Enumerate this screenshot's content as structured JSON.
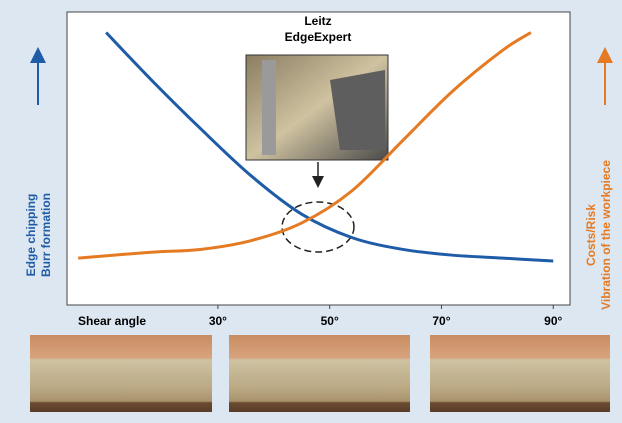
{
  "chart_data": {
    "type": "line",
    "annotation": [
      "Leitz",
      "EdgeExpert"
    ],
    "x_label": "Shear angle",
    "y_label": [
      "Edge chipping",
      "Burr formation"
    ],
    "y2_label": [
      "Costs/Risk",
      "Vibration of the workpiece"
    ],
    "xlim": [
      3,
      93
    ],
    "ylim": [
      0,
      100
    ],
    "xticks": [
      {
        "value": 30,
        "label": "30°"
      },
      {
        "value": 50,
        "label": "50°"
      },
      {
        "value": 70,
        "label": "70°"
      },
      {
        "value": 90,
        "label": "90°"
      }
    ],
    "series": [
      {
        "color": "#1f5ca8",
        "x": [
          10,
          18,
          27,
          36,
          45,
          54,
          63,
          72,
          81,
          90
        ],
        "values": [
          93,
          77,
          60,
          44,
          31,
          23,
          19,
          17,
          16,
          15
        ]
      },
      {
        "color": "#e57a22",
        "x": [
          5,
          18,
          27,
          36,
          45,
          54,
          63,
          72,
          81,
          86
        ],
        "values": [
          16,
          18,
          19,
          22,
          28,
          39,
          56,
          73,
          87,
          93
        ]
      }
    ]
  }
}
